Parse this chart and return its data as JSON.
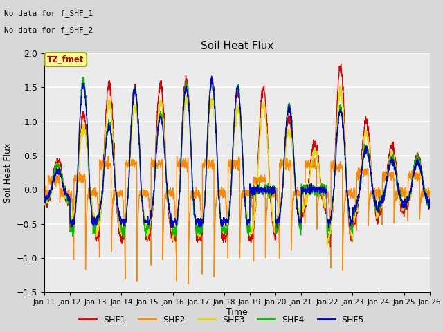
{
  "title": "Soil Heat Flux",
  "ylabel": "Soil Heat Flux",
  "xlabel": "Time",
  "annotation_text1": "No data for f_SHF_1",
  "annotation_text2": "No data for f_SHF_2",
  "tz_label": "TZ_fmet",
  "ylim": [
    -1.5,
    2.0
  ],
  "yticks": [
    -1.5,
    -1.0,
    -0.5,
    0.0,
    0.5,
    1.0,
    1.5,
    2.0
  ],
  "colors": {
    "SHF1": "#dd0000",
    "SHF2": "#ff8800",
    "SHF3": "#dddd00",
    "SHF4": "#00bb00",
    "SHF5": "#0000cc"
  },
  "x_tick_labels": [
    "Jan 11",
    "Jan 12",
    "Jan 13",
    "Jan 14",
    "Jan 15",
    "Jan 16",
    "Jan 17",
    "Jan 18",
    "Jan 19",
    "Jan 20",
    "Jan 21",
    "Jan 22",
    "Jan 23",
    "Jan 24",
    "Jan 25",
    "Jan 26"
  ],
  "grid_color": "#ffffff",
  "linewidth": 1.0,
  "n_days": 15,
  "n_pts_per_day": 144
}
